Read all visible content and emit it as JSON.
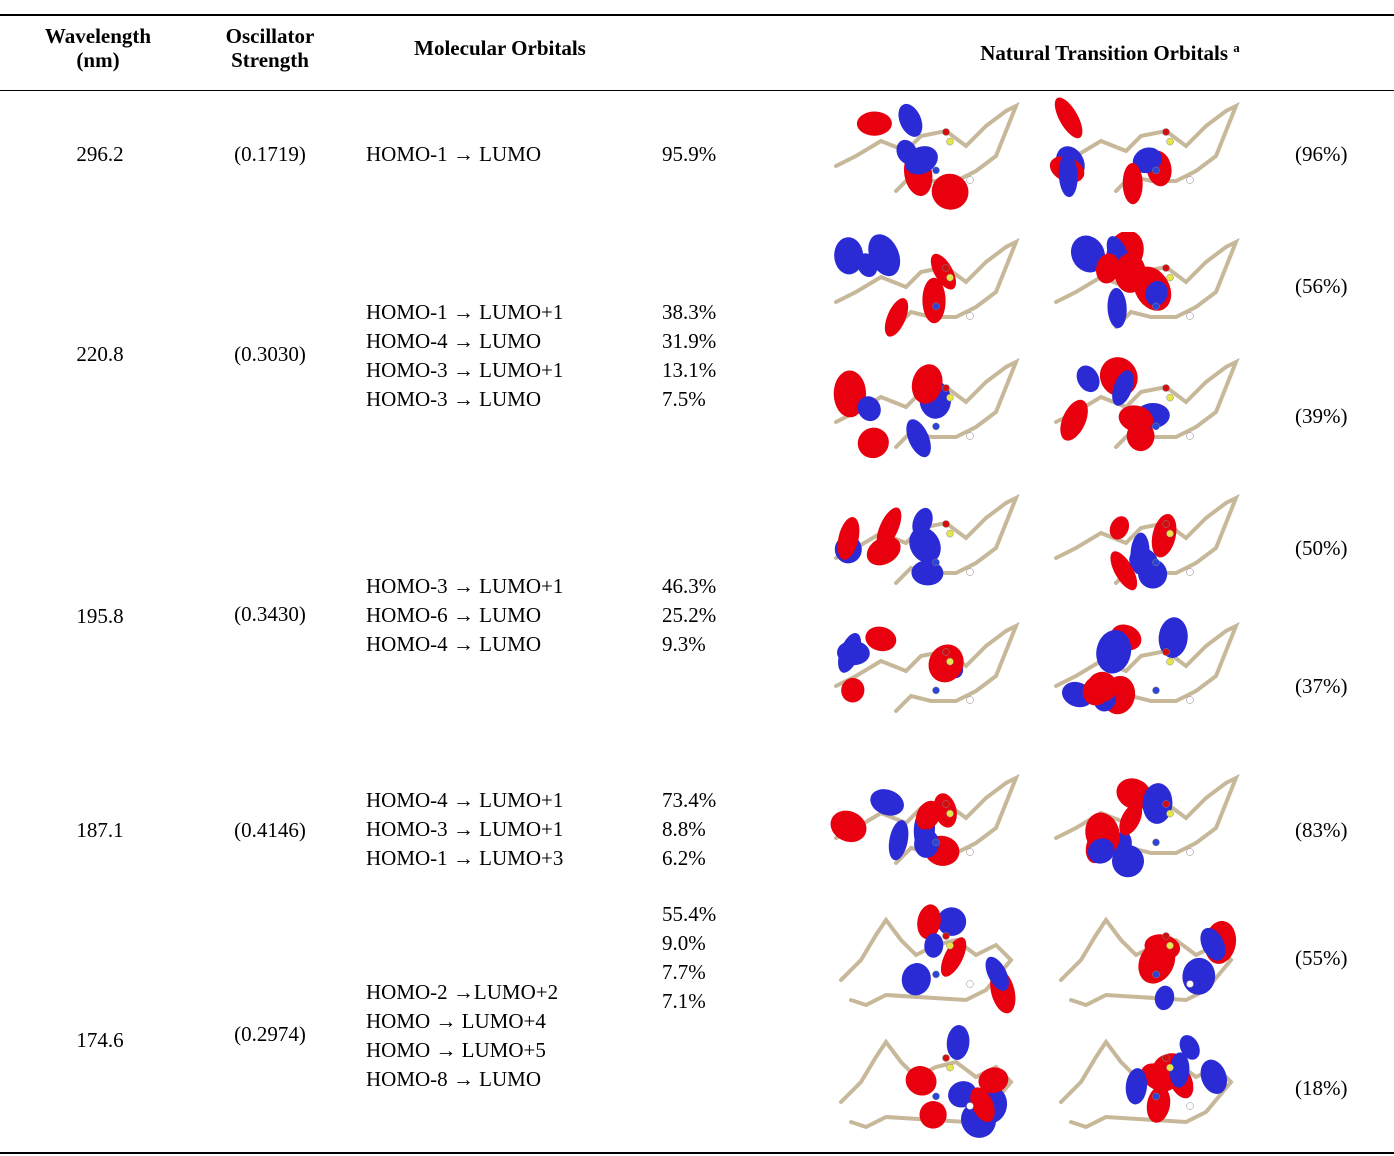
{
  "header": {
    "wavelength_line1": "Wavelength",
    "wavelength_line2": "(nm)",
    "osc_line1": "Oscillator",
    "osc_line2": "Strength",
    "mo": "Molecular Orbitals",
    "nto": "Natural Transition Orbitals",
    "nto_sup": "a"
  },
  "rows": [
    {
      "wavelength": "296.2",
      "strength": "(0.1719)",
      "transitions": [
        "HOMO-1 → LUMO"
      ],
      "weights": [
        "95.9%"
      ],
      "nto_weights": [
        "(96%)"
      ]
    },
    {
      "wavelength": "220.8",
      "strength": "(0.3030)",
      "transitions": [
        "HOMO-1 → LUMO+1",
        "HOMO-4 → LUMO",
        "HOMO-3 → LUMO+1",
        "HOMO-3 → LUMO"
      ],
      "weights": [
        "38.3%",
        "31.9%",
        "13.1%",
        "7.5%"
      ],
      "nto_weights": [
        "(56%)",
        "(39%)"
      ]
    },
    {
      "wavelength": "195.8",
      "strength": "(0.3430)",
      "transitions": [
        "HOMO-3 → LUMO+1",
        "HOMO-6 → LUMO",
        "HOMO-4 → LUMO"
      ],
      "weights": [
        "46.3%",
        "25.2%",
        "9.3%"
      ],
      "nto_weights": [
        "(50%)",
        "(37%)"
      ]
    },
    {
      "wavelength": "187.1",
      "strength": "(0.4146)",
      "transitions": [
        "HOMO-4 → LUMO+1",
        "HOMO-3 → LUMO+1",
        "HOMO-1 → LUMO+3"
      ],
      "weights": [
        "73.4%",
        "8.8%",
        "6.2%"
      ],
      "nto_weights": [
        "(83%)"
      ]
    },
    {
      "wavelength": "174.6",
      "strength": "(0.2974)",
      "transitions": [
        "HOMO-2 →LUMO+2",
        "HOMO → LUMO+4",
        "HOMO → LUMO+5",
        "HOMO-8 → LUMO"
      ],
      "weights": [
        "55.4%",
        "9.0%",
        "7.7%",
        "7.1%"
      ],
      "nto_weights": [
        "(55%)",
        "(18%)"
      ]
    }
  ],
  "colors": {
    "positive_lobe": "#e8000f",
    "negative_lobe": "#2b2bd6",
    "bond": "#c8b89a"
  }
}
